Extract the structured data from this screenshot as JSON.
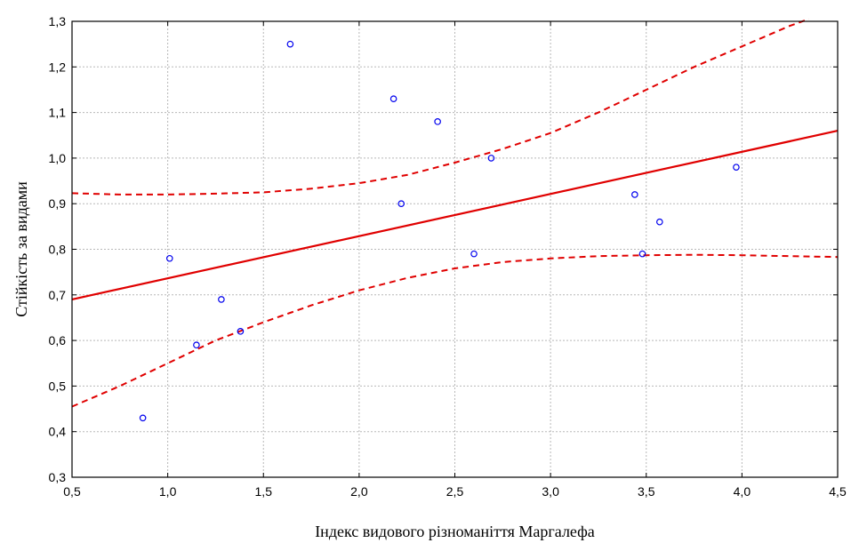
{
  "chart_data": {
    "type": "scatter",
    "title": "",
    "xlabel": "Індекс видового різноманіття Маргалефа",
    "ylabel": "Стійкість за видами",
    "xlim": [
      0.5,
      4.5
    ],
    "ylim": [
      0.3,
      1.3
    ],
    "x_ticks": [
      "0,5",
      "1,0",
      "1,5",
      "2,0",
      "2,5",
      "3,0",
      "3,5",
      "4,0",
      "4,5"
    ],
    "y_ticks": [
      "0,3",
      "0,4",
      "0,5",
      "0,6",
      "0,7",
      "0,8",
      "0,9",
      "1,0",
      "1,1",
      "1,2",
      "1,3"
    ],
    "grid": true,
    "points": [
      {
        "x": 0.87,
        "y": 0.43
      },
      {
        "x": 1.01,
        "y": 0.78
      },
      {
        "x": 1.15,
        "y": 0.59
      },
      {
        "x": 1.28,
        "y": 0.69
      },
      {
        "x": 1.38,
        "y": 0.62
      },
      {
        "x": 1.64,
        "y": 1.25
      },
      {
        "x": 2.18,
        "y": 1.13
      },
      {
        "x": 2.22,
        "y": 0.9
      },
      {
        "x": 2.41,
        "y": 1.08
      },
      {
        "x": 2.6,
        "y": 0.79
      },
      {
        "x": 2.69,
        "y": 1.0
      },
      {
        "x": 3.44,
        "y": 0.92
      },
      {
        "x": 3.48,
        "y": 0.79
      },
      {
        "x": 3.57,
        "y": 0.86
      },
      {
        "x": 3.97,
        "y": 0.98
      }
    ],
    "regression_line": {
      "x": [
        0.5,
        4.5
      ],
      "y": [
        0.69,
        1.06
      ]
    },
    "upper_band": {
      "x": [
        0.5,
        0.75,
        1.0,
        1.25,
        1.5,
        1.75,
        2.0,
        2.25,
        2.5,
        2.75,
        3.0,
        3.25,
        3.5,
        3.75,
        4.0,
        4.25,
        4.35
      ],
      "y": [
        0.923,
        0.92,
        0.92,
        0.922,
        0.925,
        0.933,
        0.945,
        0.963,
        0.99,
        1.02,
        1.055,
        1.1,
        1.15,
        1.2,
        1.245,
        1.29,
        1.305
      ]
    },
    "lower_band": {
      "x": [
        0.5,
        0.75,
        1.0,
        1.25,
        1.5,
        1.75,
        2.0,
        2.25,
        2.5,
        2.75,
        3.0,
        3.25,
        3.5,
        3.75,
        4.0,
        4.25,
        4.5
      ],
      "y": [
        0.455,
        0.5,
        0.55,
        0.6,
        0.64,
        0.677,
        0.71,
        0.737,
        0.758,
        0.772,
        0.78,
        0.785,
        0.787,
        0.788,
        0.787,
        0.785,
        0.783
      ]
    },
    "colors": {
      "points": "#0000ee",
      "lines": "#e00000",
      "grid": "#b8b8b8"
    }
  }
}
